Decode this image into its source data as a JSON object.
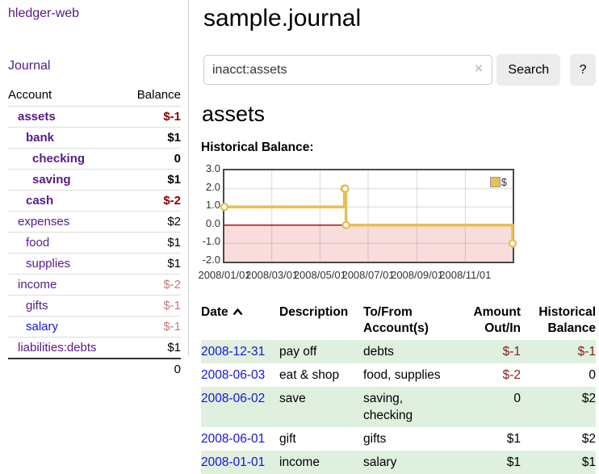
{
  "app": {
    "brand": "hledger-web"
  },
  "sidebar": {
    "journal_link": "Journal",
    "accounts_table": {
      "headers": {
        "account": "Account",
        "balance": "Balance"
      },
      "rows": [
        {
          "name": "assets",
          "depth": 1,
          "bold": true,
          "balance": "$-1",
          "balance_color": "neg-dark",
          "link_color": "purple"
        },
        {
          "name": "bank",
          "depth": 2,
          "bold": true,
          "balance": "$1",
          "balance_color": "normal",
          "link_color": "purple"
        },
        {
          "name": "checking",
          "depth": 3,
          "bold": true,
          "balance": "0",
          "balance_color": "normal",
          "link_color": "purple"
        },
        {
          "name": "saving",
          "depth": 3,
          "bold": true,
          "balance": "$1",
          "balance_color": "normal",
          "link_color": "purple"
        },
        {
          "name": "cash",
          "depth": 2,
          "bold": true,
          "balance": "$-2",
          "balance_color": "neg-dark",
          "link_color": "purple"
        },
        {
          "name": "expenses",
          "depth": 1,
          "bold": false,
          "balance": "$2",
          "balance_color": "normal",
          "link_color": "purple"
        },
        {
          "name": "food",
          "depth": 2,
          "bold": false,
          "balance": "$1",
          "balance_color": "normal",
          "link_color": "purple"
        },
        {
          "name": "supplies",
          "depth": 2,
          "bold": false,
          "balance": "$1",
          "balance_color": "normal",
          "link_color": "purple"
        },
        {
          "name": "income",
          "depth": 1,
          "bold": false,
          "balance": "$-2",
          "balance_color": "neg-light",
          "link_color": "purple"
        },
        {
          "name": "gifts",
          "depth": 2,
          "bold": false,
          "balance": "$-1",
          "balance_color": "neg-light",
          "link_color": "purple"
        },
        {
          "name": "salary",
          "depth": 2,
          "bold": false,
          "balance": "$-1",
          "balance_color": "neg-light",
          "link_color": "blue"
        },
        {
          "name": "liabilities:debts",
          "depth": 1,
          "bold": false,
          "balance": "$1",
          "balance_color": "normal",
          "link_color": "purple"
        }
      ],
      "total": "0"
    }
  },
  "header": {
    "title": "sample.journal"
  },
  "search": {
    "value": "inacct:assets",
    "clear_icon": "×",
    "search_button": "Search",
    "help_button": "?"
  },
  "account_page": {
    "title": "assets",
    "chart_label": "Historical Balance:"
  },
  "chart_data": {
    "type": "line",
    "step": true,
    "title": "Historical Balance:",
    "series": [
      {
        "name": "$",
        "points": [
          {
            "date": "2008-01-01",
            "day": 0,
            "value": 1
          },
          {
            "date": "2008-06-01",
            "day": 152,
            "value": 2
          },
          {
            "date": "2008-06-02",
            "day": 153,
            "value": 2
          },
          {
            "date": "2008-06-03",
            "day": 154,
            "value": 0
          },
          {
            "date": "2008-12-31",
            "day": 365,
            "value": -1
          }
        ]
      }
    ],
    "x_ticks": [
      {
        "label": "2008/01/01",
        "day": 0
      },
      {
        "label": "2008/03/01",
        "day": 60
      },
      {
        "label": "2008/05/01",
        "day": 121
      },
      {
        "label": "2008/07/01",
        "day": 182
      },
      {
        "label": "2008/09/01",
        "day": 244
      },
      {
        "label": "2008/11/01",
        "day": 305
      }
    ],
    "y_ticks": [
      "3.0",
      "2.0",
      "1.0",
      "0.0",
      "-1.0",
      "-2.0"
    ],
    "ylim": [
      -2,
      3
    ],
    "xlim_days": [
      0,
      365
    ],
    "legend": {
      "label": "$",
      "position": "top-right"
    },
    "negative_region_shaded": true,
    "grid": true
  },
  "register_table": {
    "headers": {
      "date": "Date",
      "description": "Description",
      "account": "To/From Account(s)",
      "amount": "Amount Out/In",
      "balance": "Historical Balance"
    },
    "rows": [
      {
        "date": "2008-12-31",
        "description": "pay off",
        "accounts": "debts",
        "amount": "$-1",
        "amount_neg": true,
        "balance": "$-1",
        "balance_neg": true
      },
      {
        "date": "2008-06-03",
        "description": "eat & shop",
        "accounts": "food, supplies",
        "amount": "$-2",
        "amount_neg": true,
        "balance": "0",
        "balance_neg": false
      },
      {
        "date": "2008-06-02",
        "description": "save",
        "accounts": "saving, checking",
        "amount": "0",
        "amount_neg": false,
        "balance": "$2",
        "balance_neg": false
      },
      {
        "date": "2008-06-01",
        "description": "gift",
        "accounts": "gifts",
        "amount": "$1",
        "amount_neg": false,
        "balance": "$2",
        "balance_neg": false
      },
      {
        "date": "2008-01-01",
        "description": "income",
        "accounts": "salary",
        "amount": "$1",
        "amount_neg": false,
        "balance": "$1",
        "balance_neg": false
      }
    ]
  },
  "colors": {
    "link_purple": "#551a8b",
    "link_blue": "#1414dd",
    "negative_strong": "#8b0000",
    "negative_muted": "#c47a7c",
    "row_green": "#dff0df",
    "chart_line_gold": "#e6c054",
    "chart_negative_bg": "#f9dcdc",
    "zero_line_red": "#990000",
    "button_gray": "#ececec"
  }
}
